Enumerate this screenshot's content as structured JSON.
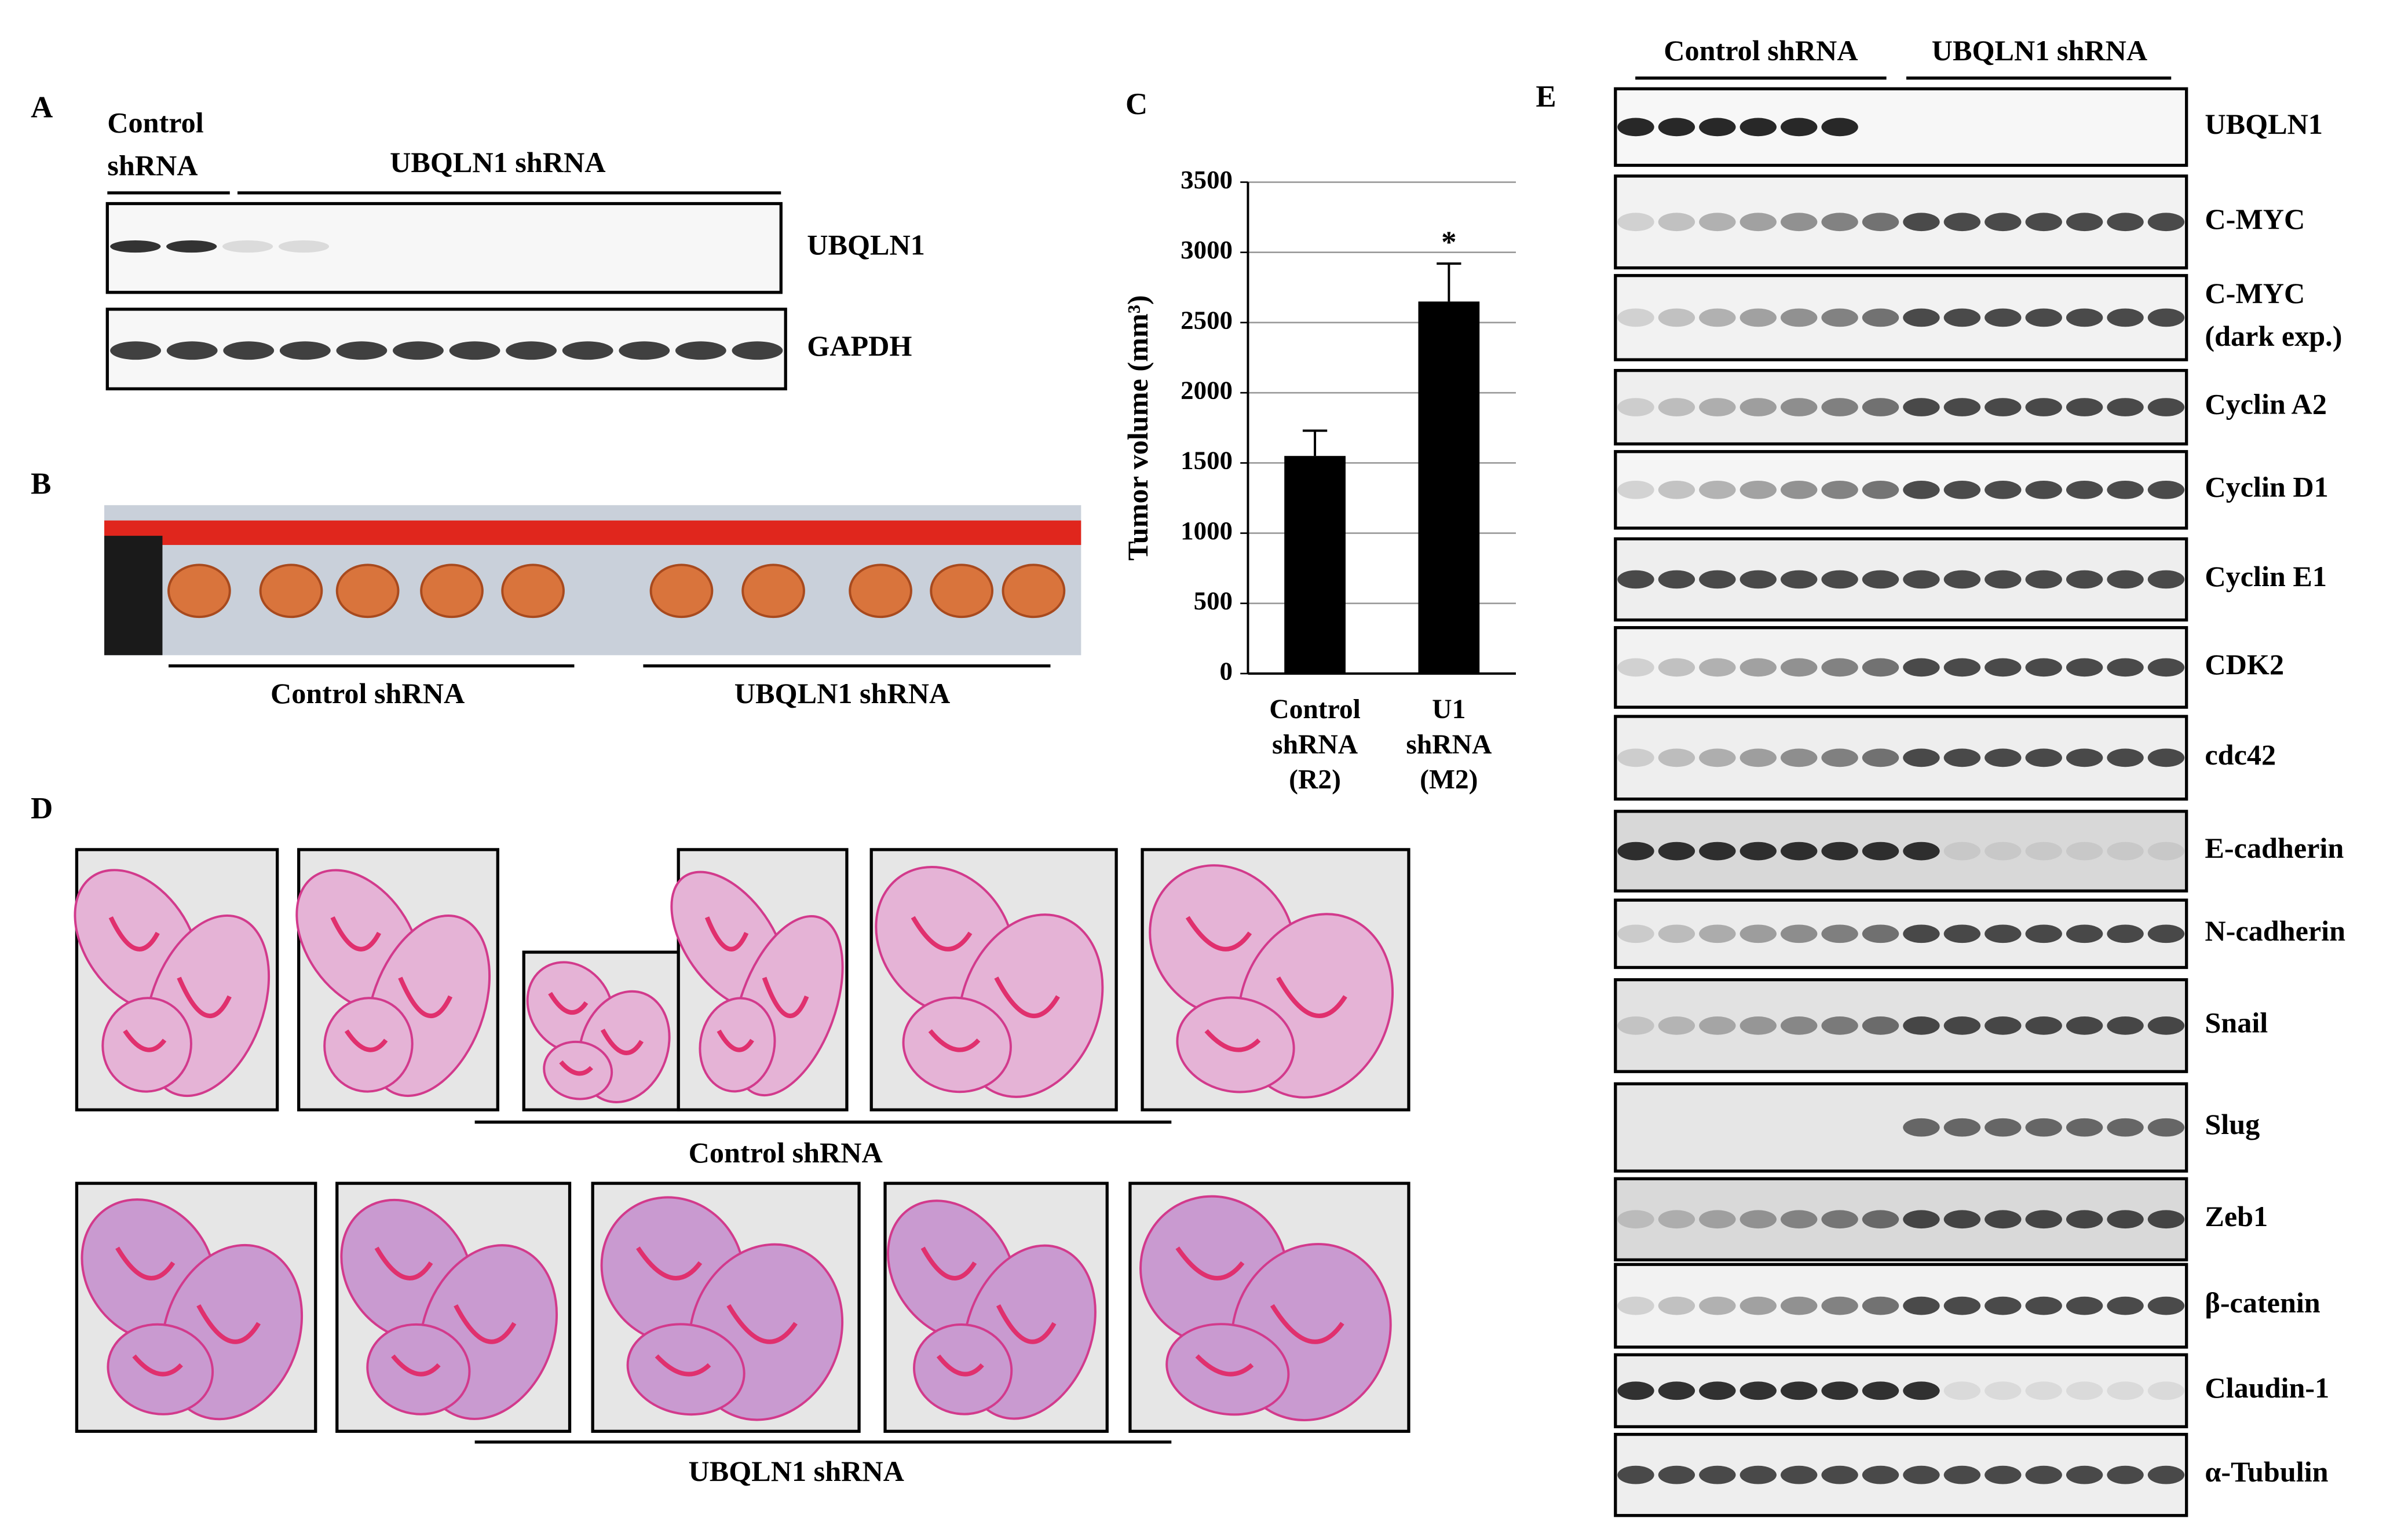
{
  "panel_a": {
    "label": "A",
    "control_label": [
      "Control",
      "shRNA"
    ],
    "knockdown_label": "UBQLN1 shRNA",
    "blots": [
      "UBQLN1",
      "GAPDH"
    ]
  },
  "panel_b": {
    "label": "B",
    "groups": [
      "Control shRNA",
      "UBQLN1 shRNA"
    ]
  },
  "panel_c": {
    "label": "C"
  },
  "chart_data": {
    "type": "bar",
    "y_label": "Tumor volume (mm³)",
    "categories": [
      [
        "Control",
        "shRNA",
        "(R2)"
      ],
      [
        "U1",
        "shRNA",
        "(M2)"
      ]
    ],
    "values": [
      1550,
      2650
    ],
    "errors": [
      180,
      270
    ],
    "color": "#000000",
    "ylim": [
      0,
      3500
    ],
    "yticks": [
      0,
      500,
      1000,
      1500,
      2000,
      2500,
      3000,
      3500
    ],
    "grid": true,
    "annotation": "*"
  },
  "panel_d": {
    "label": "D",
    "groups": [
      "Control shRNA",
      "UBQLN1 shRNA"
    ]
  },
  "panel_e": {
    "label": "E",
    "groups": [
      "Control shRNA",
      "UBQLN1 shRNA"
    ],
    "blots": [
      [
        "UBQLN1"
      ],
      [
        "C-MYC"
      ],
      [
        "C-MYC",
        "(dark exp.)"
      ],
      [
        "Cyclin A2"
      ],
      [
        "Cyclin D1"
      ],
      [
        "Cyclin E1"
      ],
      [
        "CDK2"
      ],
      [
        "cdc42"
      ],
      [
        "E-cadherin"
      ],
      [
        "N-cadherin"
      ],
      [
        "Snail"
      ],
      [
        "Slug"
      ],
      [
        "Zeb1"
      ],
      [
        "β-catenin"
      ],
      [
        "Claudin-1"
      ],
      [
        "α-Tubulin"
      ]
    ]
  }
}
